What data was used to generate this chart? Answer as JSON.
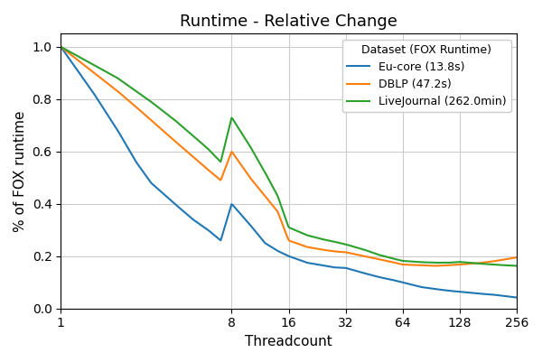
{
  "title": "Runtime - Relative Change",
  "xlabel": "Threadcount",
  "ylabel": "% of FOX runtime",
  "x_ticks": [
    1,
    8,
    16,
    32,
    64,
    128,
    256
  ],
  "x_tick_labels": [
    "1",
    "8",
    "16",
    "32",
    "64",
    "128",
    "256"
  ],
  "series": [
    {
      "label": "Eu-core (13.8s)",
      "color": "#1f77b4",
      "x": [
        1,
        1.5,
        2,
        2.5,
        3,
        4,
        5,
        6,
        7,
        8,
        10,
        12,
        14,
        16,
        20,
        24,
        28,
        32,
        40,
        48,
        56,
        64,
        80,
        96,
        112,
        128,
        160,
        192,
        224,
        256
      ],
      "y": [
        1.0,
        0.82,
        0.68,
        0.56,
        0.48,
        0.4,
        0.34,
        0.3,
        0.26,
        0.4,
        0.32,
        0.25,
        0.22,
        0.2,
        0.175,
        0.165,
        0.157,
        0.155,
        0.135,
        0.12,
        0.11,
        0.1,
        0.082,
        0.074,
        0.068,
        0.064,
        0.057,
        0.053,
        0.047,
        0.042
      ]
    },
    {
      "label": "DBLP (47.2s)",
      "color": "#ff7f0e",
      "x": [
        1,
        1.5,
        2,
        2.5,
        3,
        4,
        5,
        6,
        7,
        8,
        10,
        12,
        14,
        16,
        20,
        24,
        28,
        32,
        40,
        48,
        56,
        64,
        80,
        96,
        112,
        128,
        160,
        192,
        224,
        256
      ],
      "y": [
        1.0,
        0.9,
        0.83,
        0.77,
        0.72,
        0.64,
        0.58,
        0.53,
        0.49,
        0.6,
        0.5,
        0.43,
        0.37,
        0.26,
        0.235,
        0.225,
        0.218,
        0.215,
        0.2,
        0.188,
        0.178,
        0.168,
        0.165,
        0.163,
        0.165,
        0.168,
        0.173,
        0.18,
        0.188,
        0.195
      ]
    },
    {
      "label": "LiveJournal (262.0min)",
      "color": "#2ca02c",
      "x": [
        1,
        1.5,
        2,
        2.5,
        3,
        4,
        5,
        6,
        7,
        8,
        10,
        12,
        14,
        16,
        20,
        24,
        28,
        32,
        40,
        48,
        56,
        64,
        80,
        96,
        112,
        128,
        160,
        192,
        224,
        256
      ],
      "y": [
        1.0,
        0.93,
        0.88,
        0.83,
        0.79,
        0.72,
        0.66,
        0.61,
        0.56,
        0.73,
        0.62,
        0.52,
        0.43,
        0.31,
        0.28,
        0.265,
        0.255,
        0.245,
        0.225,
        0.205,
        0.192,
        0.182,
        0.177,
        0.175,
        0.175,
        0.178,
        0.172,
        0.168,
        0.165,
        0.163
      ]
    }
  ],
  "ylim": [
    0.0,
    1.05
  ],
  "legend_title": "Dataset (FOX Runtime)",
  "background_color": "#ffffff",
  "grid_color": "#cccccc"
}
